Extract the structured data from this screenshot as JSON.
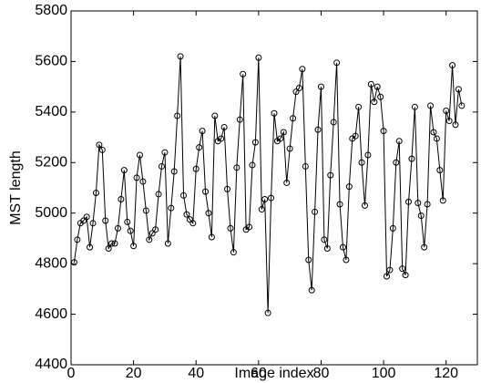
{
  "chart_data": {
    "type": "line",
    "xlabel": "Image index",
    "ylabel": "MST length",
    "x": [
      1,
      2,
      3,
      4,
      5,
      6,
      7,
      8,
      9,
      10,
      11,
      12,
      13,
      14,
      15,
      16,
      17,
      18,
      19,
      20,
      21,
      22,
      23,
      24,
      25,
      26,
      27,
      28,
      29,
      30,
      31,
      32,
      33,
      34,
      35,
      36,
      37,
      38,
      39,
      40,
      41,
      42,
      43,
      44,
      45,
      46,
      47,
      48,
      49,
      50,
      51,
      52,
      53,
      54,
      55,
      56,
      57,
      58,
      59,
      60,
      61,
      62,
      63,
      64,
      65,
      66,
      67,
      68,
      69,
      70,
      71,
      72,
      73,
      74,
      75,
      76,
      77,
      78,
      79,
      80,
      81,
      82,
      83,
      84,
      85,
      86,
      87,
      88,
      89,
      90,
      91,
      92,
      93,
      94,
      95,
      96,
      97,
      98,
      99,
      100,
      101,
      102,
      103,
      104,
      105,
      106,
      107,
      108,
      109,
      110,
      111,
      112,
      113,
      114,
      115,
      116,
      117,
      118,
      119,
      120,
      121,
      122,
      123,
      124,
      125
    ],
    "series": [
      {
        "color": "#000000",
        "marker": "circle",
        "values": [
          4805,
          4895,
          4960,
          4970,
          4985,
          4865,
          4960,
          5080,
          5270,
          5250,
          4970,
          4860,
          4880,
          4880,
          4940,
          5055,
          5170,
          4965,
          4930,
          4870,
          5140,
          5230,
          5125,
          5010,
          4895,
          4920,
          4935,
          5075,
          5185,
          5240,
          4880,
          5020,
          5165,
          5385,
          5620,
          5070,
          4995,
          4975,
          4960,
          5175,
          5260,
          5325,
          5085,
          5000,
          4905,
          5385,
          5285,
          5295,
          5340,
          5095,
          4940,
          4845,
          5180,
          5370,
          5550,
          4935,
          4945,
          5190,
          5280,
          5615,
          5015,
          5055,
          4605,
          5060,
          5395,
          5285,
          5295,
          5320,
          5120,
          5255,
          5375,
          5480,
          5495,
          5570,
          5185,
          4815,
          4695,
          5005,
          5330,
          5500,
          4895,
          4860,
          5150,
          5360,
          5595,
          5035,
          4865,
          4815,
          5105,
          5295,
          5305,
          5420,
          5200,
          5030,
          5230,
          5510,
          5440,
          5500,
          5460,
          5325,
          4750,
          4775,
          4940,
          5200,
          5285,
          4780,
          4755,
          5045,
          5215,
          5420,
          5040,
          4990,
          4865,
          5035,
          5425,
          5320,
          5295,
          5170,
          5050,
          5405,
          5365,
          5585,
          5350,
          5490,
          5425
        ]
      }
    ],
    "xlim": [
      0,
      130
    ],
    "xticks": [
      0,
      20,
      40,
      60,
      80,
      100,
      120
    ],
    "ylim": [
      4400,
      5800
    ],
    "yticks": [
      4400,
      4600,
      4800,
      5000,
      5200,
      5400,
      5600,
      5800
    ],
    "grid": false
  }
}
